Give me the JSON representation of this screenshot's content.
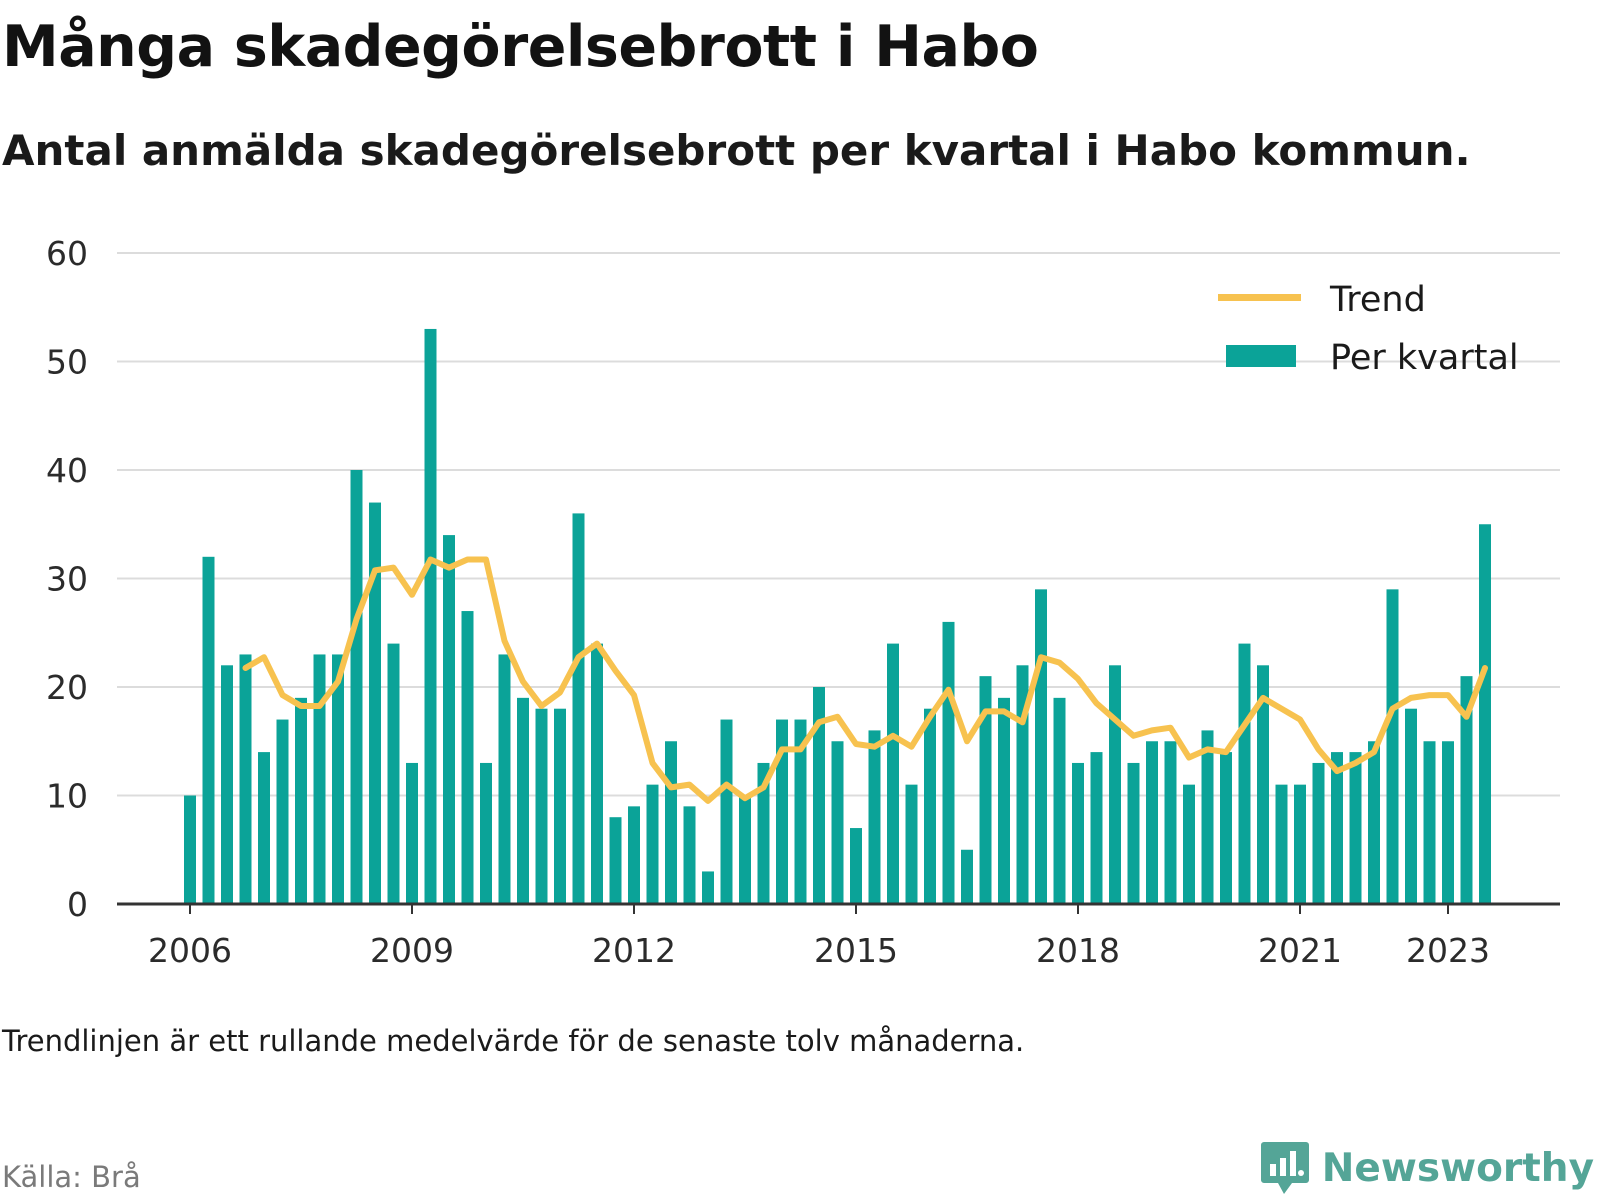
{
  "header": {
    "title": "Många skadegörelsebrott i Habo",
    "subtitle": "Antal anmälda skadegörelsebrott per kvartal i Habo kommun."
  },
  "footer": {
    "note": "Trendlinjen är ett rullande medelvärde för de senaste tolv månaderna.",
    "source": "Källa: Brå",
    "brand": "Newsworthy"
  },
  "colors": {
    "bar": "#0ba398",
    "trend": "#f7c24f",
    "grid": "#dcdcdc",
    "axis": "#333333",
    "brand": "#54a597"
  },
  "chart_data": {
    "type": "bar",
    "title": "Många skadegörelsebrott i Habo",
    "subtitle": "Antal anmälda skadegörelsebrott per kvartal i Habo kommun.",
    "xlabel": "",
    "ylabel": "",
    "ylim": [
      0,
      60
    ],
    "yticks": [
      0,
      10,
      20,
      30,
      40,
      50,
      60
    ],
    "grid": true,
    "legend_position": "top-right",
    "x_tick_labels": [
      {
        "label": "2006",
        "index": 0
      },
      {
        "label": "2009",
        "index": 12
      },
      {
        "label": "2012",
        "index": 24
      },
      {
        "label": "2015",
        "index": 36
      },
      {
        "label": "2018",
        "index": 48
      },
      {
        "label": "2021",
        "index": 60
      },
      {
        "label": "2023",
        "index": 68
      }
    ],
    "categories": [
      "2006 Q1",
      "2006 Q2",
      "2006 Q3",
      "2006 Q4",
      "2007 Q1",
      "2007 Q2",
      "2007 Q3",
      "2007 Q4",
      "2008 Q1",
      "2008 Q2",
      "2008 Q3",
      "2008 Q4",
      "2009 Q1",
      "2009 Q2",
      "2009 Q3",
      "2009 Q4",
      "2010 Q1",
      "2010 Q2",
      "2010 Q3",
      "2010 Q4",
      "2011 Q1",
      "2011 Q2",
      "2011 Q3",
      "2011 Q4",
      "2012 Q1",
      "2012 Q2",
      "2012 Q3",
      "2012 Q4",
      "2013 Q1",
      "2013 Q2",
      "2013 Q3",
      "2013 Q4",
      "2014 Q1",
      "2014 Q2",
      "2014 Q3",
      "2014 Q4",
      "2015 Q1",
      "2015 Q2",
      "2015 Q3",
      "2015 Q4",
      "2016 Q1",
      "2016 Q2",
      "2016 Q3",
      "2016 Q4",
      "2017 Q1",
      "2017 Q2",
      "2017 Q3",
      "2017 Q4",
      "2018 Q1",
      "2018 Q2",
      "2018 Q3",
      "2018 Q4",
      "2019 Q1",
      "2019 Q2",
      "2019 Q3",
      "2019 Q4",
      "2020 Q1",
      "2020 Q2",
      "2020 Q3",
      "2020 Q4",
      "2021 Q1",
      "2021 Q2",
      "2021 Q3",
      "2021 Q4",
      "2022 Q1",
      "2022 Q2",
      "2022 Q3",
      "2022 Q4",
      "2023 Q1",
      "2023 Q2",
      "2023 Q3"
    ],
    "series": [
      {
        "name": "Per kvartal",
        "type": "bar",
        "values": [
          10,
          32,
          22,
          23,
          14,
          17,
          19,
          23,
          23,
          40,
          37,
          24,
          13,
          53,
          34,
          27,
          13,
          23,
          19,
          18,
          18,
          36,
          24,
          8,
          9,
          11,
          15,
          9,
          3,
          17,
          10,
          13,
          17,
          17,
          20,
          15,
          7,
          16,
          24,
          11,
          18,
          26,
          5,
          21,
          19,
          22,
          29,
          19,
          13,
          14,
          22,
          13,
          15,
          15,
          11,
          16,
          14,
          24,
          22,
          11,
          11,
          13,
          14,
          14,
          15,
          29,
          18,
          15,
          15,
          21,
          35
        ]
      },
      {
        "name": "Trend",
        "type": "line",
        "values": [
          null,
          null,
          null,
          21.75,
          22.75,
          19.25,
          18.25,
          18.25,
          20.5,
          26.25,
          30.75,
          31,
          28.5,
          31.75,
          31,
          31.75,
          31.75,
          24.25,
          20.5,
          18.25,
          19.5,
          22.75,
          24,
          21.5,
          19.25,
          13,
          10.75,
          11,
          9.5,
          11,
          9.75,
          10.75,
          14.25,
          14.25,
          16.75,
          17.25,
          14.75,
          14.5,
          15.5,
          14.5,
          17.25,
          19.75,
          15,
          17.75,
          17.75,
          16.75,
          22.75,
          22.25,
          20.75,
          18.5,
          17,
          15.5,
          16,
          16.25,
          13.5,
          14.25,
          14,
          16.5,
          19,
          18,
          17,
          14.25,
          12.25,
          13,
          14,
          18,
          19,
          19.25,
          19.25,
          17.25,
          21.75
        ]
      }
    ]
  }
}
